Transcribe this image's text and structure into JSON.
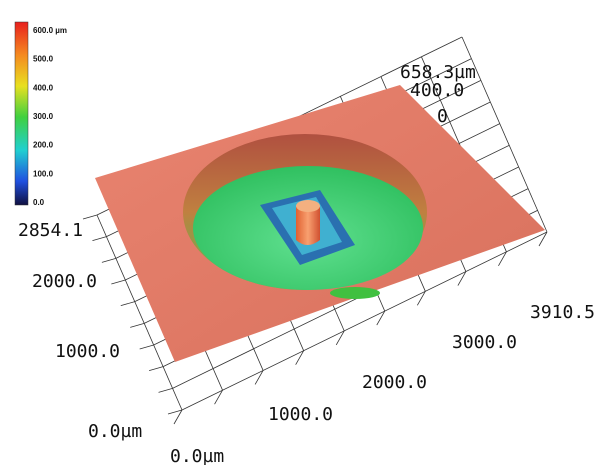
{
  "colorbar": {
    "labels": [
      "600.0 µm",
      "500.0",
      "400.0",
      "300.0",
      "200.0",
      "100.0",
      "0.0"
    ]
  },
  "z_axis": {
    "labels": [
      "658.3µm",
      "400.0",
      "0"
    ]
  },
  "y_axis": {
    "labels": [
      "2854.1",
      "2000.0",
      "1000.0",
      "0.0µm"
    ]
  },
  "x_axis": {
    "labels": [
      "3910.5",
      "3000.0",
      "2000.0",
      "1000.0",
      "0.0µm"
    ]
  }
}
